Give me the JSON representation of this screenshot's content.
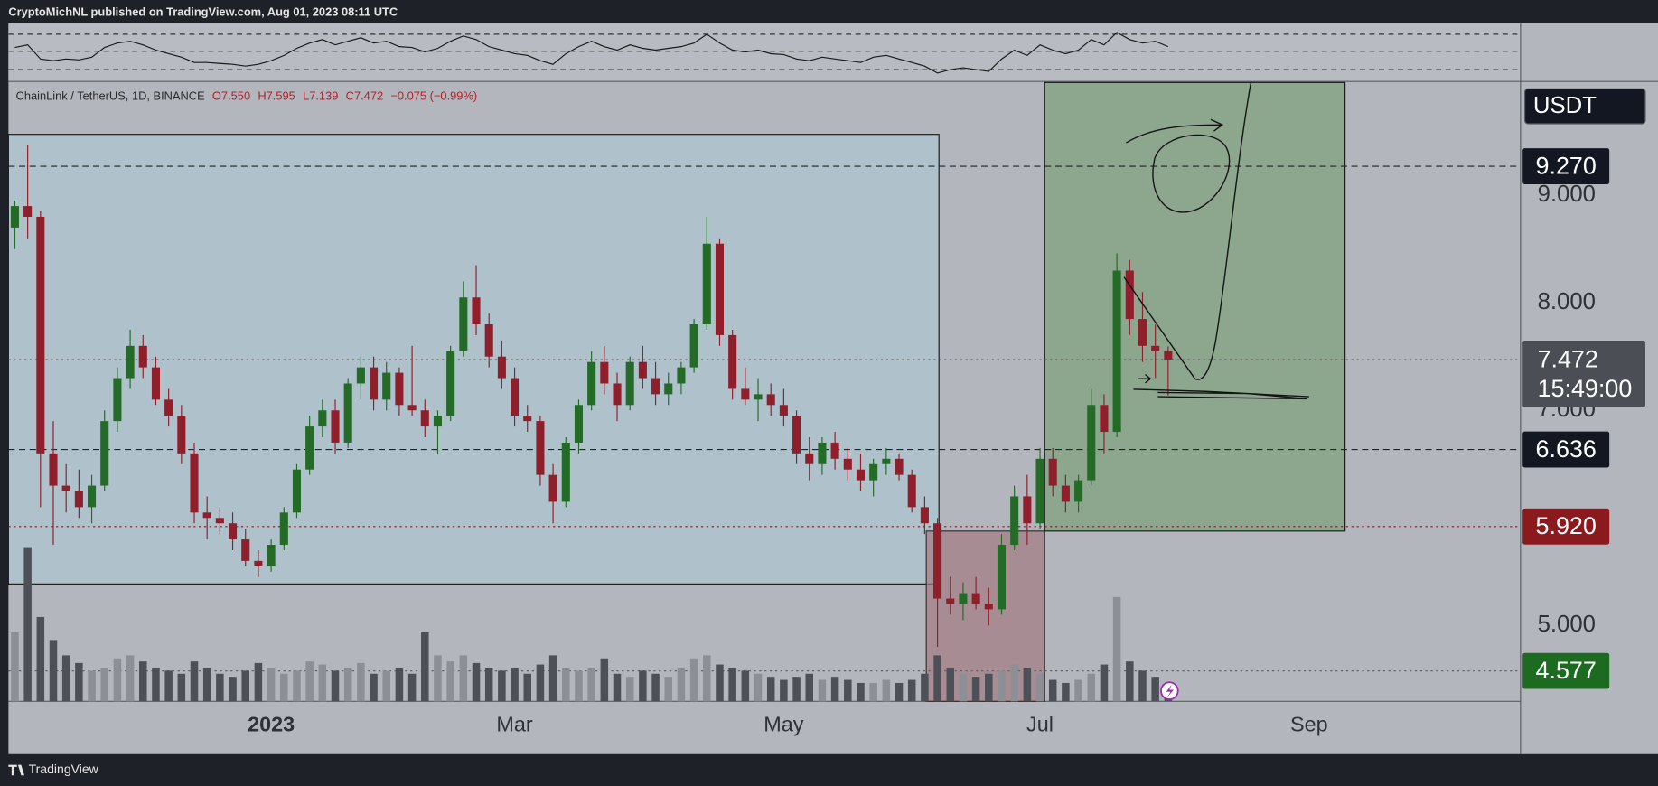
{
  "header": {
    "publisher": "CryptoMichNL published on TradingView.com, Aug 01, 2023 08:11 UTC"
  },
  "footer": {
    "brand": "TradingView"
  },
  "chart_data": {
    "type": "candlestick",
    "symbol": "ChainLink / TetherUS, 1D, BINANCE",
    "ohlc_legend": [
      "O7.550",
      "H7.595",
      "L7.139",
      "C7.472",
      "−0.075 (−0.99%)"
    ],
    "currency": "USDT",
    "categories": [
      null,
      null,
      null,
      null,
      null,
      null,
      null,
      null,
      null,
      null,
      null,
      null,
      null,
      null,
      null,
      null,
      null,
      null,
      null,
      null,
      "2023",
      null,
      null,
      null,
      null,
      null,
      null,
      null,
      null,
      null,
      null,
      null,
      null,
      null,
      null,
      null,
      null,
      null,
      null,
      "Mar",
      null,
      null,
      null,
      null,
      null,
      null,
      null,
      null,
      null,
      null,
      null,
      null,
      null,
      null,
      null,
      null,
      null,
      null,
      null,
      null,
      "May",
      null,
      null,
      null,
      null,
      null,
      null,
      null,
      null,
      null,
      null,
      null,
      null,
      null,
      null,
      null,
      null,
      null,
      null,
      null,
      "Jul",
      null,
      null,
      null,
      null,
      null,
      null,
      null,
      null,
      null,
      null,
      null,
      null,
      null,
      null,
      null,
      null,
      null,
      null,
      null,
      null,
      "Sep",
      null,
      null,
      null,
      null,
      null,
      null,
      null,
      null,
      null,
      null,
      null,
      null,
      null,
      null,
      null,
      null
    ],
    "open": [
      8.7,
      8.9,
      8.8,
      6.6,
      6.3,
      6.25,
      6.1,
      6.3,
      6.9,
      7.3,
      7.6,
      7.4,
      7.1,
      6.95,
      6.6,
      6.05,
      6.0,
      5.95,
      5.8,
      5.6,
      5.55,
      5.75,
      6.05,
      6.45,
      6.85,
      7.0,
      6.7,
      7.25,
      7.4,
      7.1,
      7.35,
      7.05,
      7.0,
      6.85,
      6.95,
      7.55,
      8.05,
      7.8,
      7.5,
      7.3,
      6.95,
      6.9,
      6.4,
      6.15,
      6.7,
      7.05,
      7.45,
      7.25,
      7.05,
      7.45,
      7.3,
      7.15,
      7.25,
      7.4,
      7.8,
      8.55,
      7.7,
      7.2,
      7.1,
      7.15,
      7.05,
      6.95,
      6.6,
      6.5,
      6.7,
      6.55,
      6.45,
      6.35,
      6.5,
      6.55,
      6.4,
      6.1,
      5.95,
      5.25,
      5.2,
      5.3,
      5.2,
      5.15,
      5.75,
      6.2,
      5.95,
      6.55,
      6.3,
      6.15,
      6.35,
      7.05,
      6.8,
      8.3,
      7.85,
      7.6,
      7.55,
      null,
      null,
      null,
      null,
      null,
      null,
      null,
      null,
      null,
      null,
      null,
      null,
      null,
      null,
      null,
      null,
      null,
      null,
      null,
      null,
      null,
      null,
      null,
      null,
      null,
      null,
      null
    ],
    "high": [
      8.95,
      9.47,
      8.85,
      6.9,
      6.5,
      6.45,
      6.4,
      7.0,
      7.4,
      7.75,
      7.7,
      7.5,
      7.2,
      7.05,
      6.7,
      6.2,
      6.1,
      6.05,
      5.9,
      5.7,
      5.8,
      6.1,
      6.5,
      6.95,
      7.1,
      7.1,
      7.3,
      7.5,
      7.5,
      7.45,
      7.4,
      7.6,
      7.1,
      7.0,
      7.6,
      8.2,
      8.35,
      7.9,
      7.65,
      7.4,
      7.05,
      6.95,
      6.5,
      6.75,
      7.1,
      7.55,
      7.6,
      7.35,
      7.5,
      7.6,
      7.45,
      7.35,
      7.45,
      7.85,
      8.8,
      8.6,
      7.75,
      7.4,
      7.3,
      7.25,
      7.2,
      7.0,
      6.75,
      6.75,
      6.8,
      6.65,
      6.6,
      6.55,
      6.65,
      6.6,
      6.45,
      6.2,
      6.0,
      5.45,
      5.4,
      5.45,
      5.35,
      5.85,
      6.3,
      6.4,
      6.65,
      6.65,
      6.4,
      6.4,
      7.2,
      7.15,
      8.46,
      8.4,
      8.1,
      7.8,
      7.595,
      null,
      null,
      null,
      null,
      null,
      null,
      null,
      null,
      null,
      null,
      null,
      null,
      null,
      null,
      null,
      null,
      null,
      null,
      null,
      null,
      null,
      null,
      null,
      null,
      null,
      null,
      null
    ],
    "low": [
      8.5,
      8.6,
      6.1,
      5.75,
      6.05,
      6.0,
      5.95,
      6.25,
      6.8,
      7.2,
      7.3,
      7.05,
      6.85,
      6.5,
      5.95,
      5.8,
      5.85,
      5.7,
      5.55,
      5.45,
      5.5,
      5.7,
      6.0,
      6.4,
      6.75,
      6.6,
      6.65,
      7.1,
      7.0,
      7.0,
      6.95,
      6.95,
      6.75,
      6.6,
      6.9,
      7.5,
      7.7,
      7.4,
      7.2,
      6.85,
      6.8,
      6.3,
      5.95,
      6.1,
      6.6,
      7.0,
      7.15,
      6.9,
      7.0,
      7.2,
      7.05,
      7.05,
      7.15,
      7.35,
      7.75,
      7.6,
      7.1,
      7.05,
      6.9,
      6.95,
      6.85,
      6.5,
      6.35,
      6.4,
      6.45,
      6.35,
      6.25,
      6.2,
      6.4,
      6.35,
      6.05,
      5.85,
      4.8,
      5.1,
      5.05,
      5.15,
      5.0,
      5.1,
      5.7,
      5.75,
      5.9,
      6.2,
      6.05,
      6.05,
      6.3,
      6.6,
      6.75,
      7.7,
      7.45,
      7.3,
      7.139,
      null,
      null,
      null,
      null,
      null,
      null,
      null,
      null,
      null,
      null,
      null,
      null,
      null,
      null,
      null,
      null,
      null,
      null,
      null,
      null,
      null,
      null,
      null,
      null,
      null,
      null,
      null
    ],
    "close": [
      8.9,
      8.8,
      6.6,
      6.3,
      6.25,
      6.1,
      6.3,
      6.9,
      7.3,
      7.6,
      7.4,
      7.1,
      6.95,
      6.6,
      6.05,
      6.0,
      5.95,
      5.8,
      5.6,
      5.55,
      5.75,
      6.05,
      6.45,
      6.85,
      7.0,
      6.7,
      7.25,
      7.4,
      7.1,
      7.35,
      7.05,
      7.0,
      6.85,
      6.95,
      7.55,
      8.05,
      7.8,
      7.5,
      7.3,
      6.95,
      6.9,
      6.4,
      6.15,
      6.7,
      7.05,
      7.45,
      7.25,
      7.05,
      7.45,
      7.3,
      7.15,
      7.25,
      7.4,
      7.8,
      8.55,
      7.7,
      7.2,
      7.1,
      7.15,
      7.05,
      6.95,
      6.6,
      6.5,
      6.7,
      6.55,
      6.45,
      6.35,
      6.5,
      6.55,
      6.4,
      6.1,
      5.95,
      5.25,
      5.2,
      5.3,
      5.2,
      5.15,
      5.75,
      6.2,
      5.95,
      6.55,
      6.3,
      6.15,
      6.35,
      7.05,
      6.8,
      8.3,
      7.85,
      7.6,
      7.55,
      7.472,
      null,
      null,
      null,
      null,
      null,
      null,
      null,
      null,
      null,
      null,
      null,
      null,
      null,
      null,
      null,
      null,
      null,
      null,
      null,
      null,
      null,
      null,
      null,
      null,
      null,
      null,
      null
    ],
    "up_color": "#236b26",
    "down_color": "#8e1f2b",
    "ylim": [
      4.294,
      10.049
    ],
    "yticks": [
      {
        "value": 5,
        "label": "5.000"
      },
      {
        "value": 7,
        "label": "7.000"
      },
      {
        "value": 8,
        "label": "8.000"
      },
      {
        "value": 9,
        "label": "9.000"
      }
    ],
    "price_levels": [
      {
        "value": 9.27,
        "label": "9.270",
        "color": "#131722",
        "line_color": "#222222",
        "line": "dashed"
      },
      {
        "value": 6.636,
        "label": "6.636",
        "color": "#131722",
        "line_color": "#222222",
        "line": "dashed"
      },
      {
        "value": 5.92,
        "label": "5.920",
        "color": "#8b1a1e",
        "line_color": "#8b1a1e",
        "line": "dotted"
      },
      {
        "value": 4.577,
        "label": "4.577",
        "color": "#1d6b21",
        "line_color": "#666666",
        "line": "dotted"
      }
    ],
    "last_price": {
      "value": 7.472,
      "label": "7.472",
      "countdown": "15:49:00",
      "color": "#4b4e55"
    },
    "volume": {
      "ylim": [
        0,
        100
      ],
      "up_color": "#8c8f96",
      "down_color": "#4e5057",
      "values": [
        45,
        100,
        55,
        40,
        30,
        25,
        20,
        22,
        28,
        30,
        26,
        22,
        20,
        18,
        26,
        22,
        18,
        16,
        20,
        25,
        22,
        18,
        20,
        26,
        24,
        20,
        22,
        25,
        18,
        20,
        22,
        18,
        45,
        30,
        26,
        30,
        25,
        22,
        20,
        22,
        18,
        24,
        30,
        22,
        20,
        22,
        28,
        18,
        16,
        20,
        18,
        16,
        22,
        28,
        30,
        24,
        22,
        20,
        18,
        16,
        14,
        16,
        18,
        14,
        16,
        14,
        12,
        12,
        14,
        12,
        14,
        18,
        30,
        22,
        18,
        16,
        18,
        20,
        24,
        22,
        18,
        14,
        12,
        14,
        18,
        24,
        68,
        26,
        20,
        16,
        12,
        null,
        null,
        null,
        null,
        null,
        null,
        null,
        null,
        null,
        null,
        null,
        null,
        null,
        null,
        null,
        null,
        null,
        null,
        null,
        null,
        null,
        null,
        null,
        null,
        null,
        null,
        null
      ]
    },
    "rsi": {
      "ylim": [
        19,
        80
      ],
      "levels": [
        30,
        50,
        70
      ],
      "color": "#1a1a1a",
      "values": [
        55,
        58,
        42,
        40,
        42,
        41,
        44,
        55,
        60,
        62,
        58,
        52,
        48,
        44,
        38,
        38,
        37,
        36,
        34,
        36,
        40,
        46,
        54,
        60,
        64,
        58,
        62,
        66,
        60,
        62,
        56,
        55,
        50,
        54,
        62,
        68,
        64,
        56,
        52,
        48,
        46,
        40,
        36,
        48,
        56,
        62,
        56,
        52,
        58,
        54,
        52,
        54,
        56,
        60,
        70,
        60,
        52,
        50,
        52,
        48,
        47,
        42,
        40,
        44,
        42,
        40,
        38,
        44,
        46,
        42,
        38,
        34,
        26,
        30,
        32,
        30,
        28,
        42,
        52,
        46,
        58,
        52,
        48,
        52,
        64,
        58,
        72,
        64,
        60,
        62,
        56,
        null,
        null,
        null,
        null,
        null,
        null,
        null,
        null,
        null,
        null,
        null,
        null,
        null,
        null,
        null,
        null,
        null,
        null,
        null,
        null,
        null,
        null,
        null,
        null,
        null,
        null,
        null
      ]
    }
  }
}
